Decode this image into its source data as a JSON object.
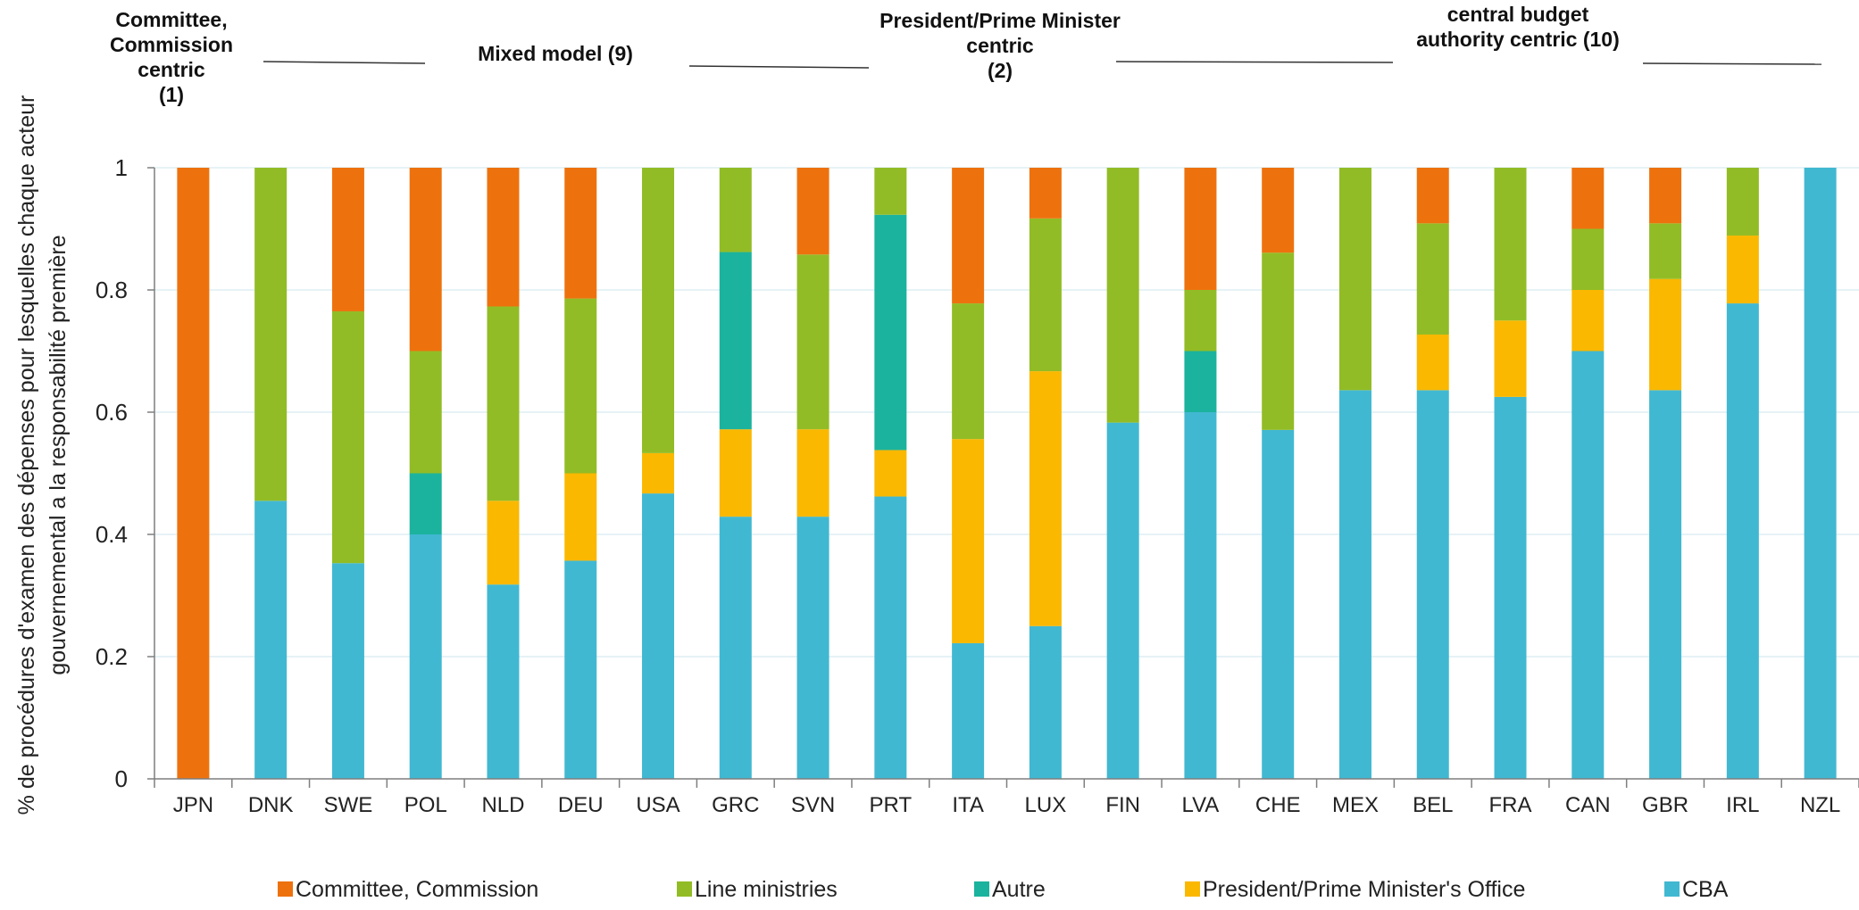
{
  "colors": {
    "committee": "#ED720E",
    "line": "#92BC25",
    "autre": "#1BB39D",
    "president": "#FAB800",
    "cba": "#41B8D1",
    "grid": "#DDEEF4",
    "axis": "#7F7F7F"
  },
  "chart_data": {
    "type": "bar",
    "stacked": true,
    "ylabel_lines": [
      "% de procédures d'examen des dépenses pour lesquelles chaque acteur",
      "gouvernemental a la responsabilité première"
    ],
    "ylim": [
      0,
      1
    ],
    "yticks": [
      "0",
      "0.2",
      "0.4",
      "0.6",
      "0.8",
      "1"
    ],
    "grid": true,
    "legend_position": "bottom",
    "categories": [
      "JPN",
      "DNK",
      "SWE",
      "POL",
      "NLD",
      "DEU",
      "USA",
      "GRC",
      "SVN",
      "PRT",
      "ITA",
      "LUX",
      "FIN",
      "LVA",
      "CHE",
      "MEX",
      "BEL",
      "FRA",
      "CAN",
      "GBR",
      "IRL",
      "NZL"
    ],
    "series": [
      {
        "name": "CBA",
        "key": "cba",
        "values": [
          0,
          0.455,
          0.353,
          0.4,
          0.318,
          0.357,
          0.467,
          0.429,
          0.429,
          0.462,
          0.222,
          0.25,
          0.583,
          0.6,
          0.571,
          0.636,
          0.636,
          0.625,
          0.7,
          0.636,
          0.778,
          1
        ]
      },
      {
        "name": "President/Prime Minister's Office",
        "key": "president",
        "values": [
          0,
          0,
          0,
          0,
          0.137,
          0.143,
          0.066,
          0.143,
          0.143,
          0.076,
          0.334,
          0.417,
          0,
          0,
          0,
          0,
          0.091,
          0.125,
          0.1,
          0.182,
          0.111,
          0
        ]
      },
      {
        "name": "Autre",
        "key": "autre",
        "values": [
          0,
          0,
          0,
          0.1,
          0,
          0,
          0,
          0.29,
          0,
          0.385,
          0,
          0,
          0,
          0.1,
          0,
          0,
          0,
          0,
          0,
          0,
          0,
          0
        ]
      },
      {
        "name": "Line ministries",
        "key": "line",
        "values": [
          0,
          0.545,
          0.412,
          0.2,
          0.318,
          0.286,
          0.467,
          0.138,
          0.286,
          0.077,
          0.222,
          0.25,
          0.417,
          0.1,
          0.29,
          0.364,
          0.182,
          0.25,
          0.1,
          0.091,
          0.111,
          0
        ]
      },
      {
        "name": "Committee, Commission",
        "key": "committee",
        "values": [
          1,
          0,
          0.235,
          0.3,
          0.227,
          0.214,
          0,
          0,
          0.142,
          0,
          0.222,
          0.083,
          0,
          0.2,
          0.139,
          0,
          0.091,
          0,
          0.1,
          0.091,
          0,
          0
        ]
      }
    ],
    "legend_order": [
      "committee",
      "line",
      "autre",
      "president",
      "cba"
    ],
    "legend_labels": [
      "Committee, Commission",
      "Line ministries",
      "Autre",
      "President/Prime Minister's Office",
      "CBA"
    ],
    "group_annotations": [
      {
        "lines": [
          "Committee,",
          "Commission",
          "centric",
          "(1)"
        ]
      },
      {
        "lines": [
          "Mixed model (9)"
        ]
      },
      {
        "lines": [
          "President/Prime Minister",
          "centric",
          "(2)"
        ]
      },
      {
        "lines": [
          "central budget",
          "authority centric (10)"
        ]
      }
    ]
  }
}
